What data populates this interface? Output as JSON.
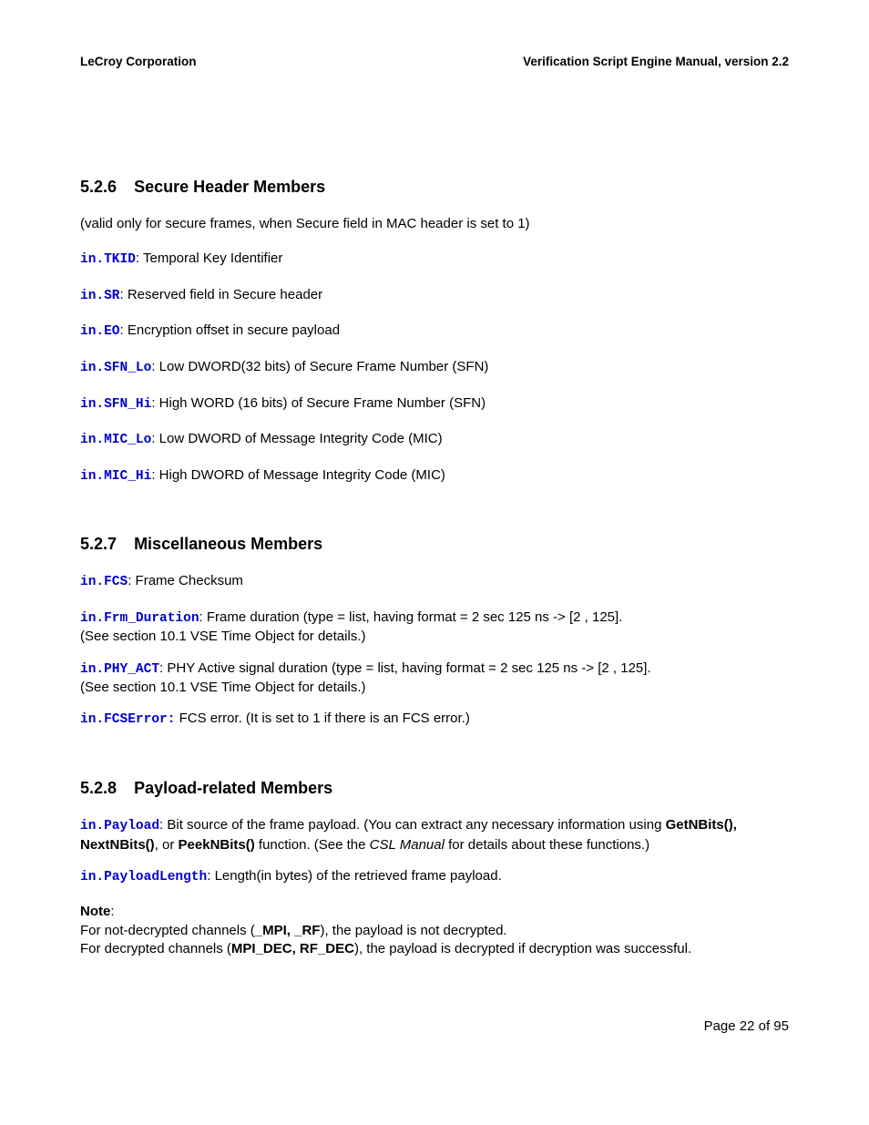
{
  "header": {
    "left": "LeCroy Corporation",
    "right": "Verification Script Engine Manual, version 2.2"
  },
  "sections": {
    "s1": {
      "num": "5.2.6",
      "title": "Secure Header Members"
    },
    "s2": {
      "num": "5.2.7",
      "title": "Miscellaneous Members"
    },
    "s3": {
      "num": "5.2.8",
      "title": "Payload-related Members"
    }
  },
  "s1": {
    "intro": "(valid only for secure frames, when Secure field in MAC header is set to 1)",
    "tkid_code": "in.TKID",
    "tkid_desc": ": Temporal Key Identifier",
    "sr_code": "in.SR",
    "sr_desc": ": Reserved field in Secure header",
    "eo_code": "in.EO",
    "eo_desc": ": Encryption offset in secure payload",
    "sfnlo_code": "in.SFN_Lo",
    "sfnlo_desc": ": Low DWORD(32 bits) of Secure Frame Number (SFN)",
    "sfnhi_code": "in.SFN_Hi",
    "sfnhi_desc": ": High WORD (16 bits) of Secure Frame Number (SFN)",
    "miclo_code": "in.MIC_Lo",
    "miclo_desc": ": Low DWORD of Message Integrity Code (MIC)",
    "michi_code": "in.MIC_Hi",
    "michi_desc": ": High DWORD of Message Integrity Code (MIC)"
  },
  "s2": {
    "fcs_code": "in.FCS",
    "fcs_desc": ": Frame Checksum",
    "frm_code": "in.Frm_Duration",
    "frm_desc1": ": Frame duration (type = list,  having format = 2 sec 125 ns -> [2 , 125].",
    "frm_desc2": "(See section 10.1 VSE Time Object for details.)",
    "phy_code": "in.PHY_ACT",
    "phy_desc1": ": PHY Active signal duration (type = list,  having format = 2 sec 125 ns -> [2 , 125].",
    "phy_desc2": "(See section 10.1 VSE Time Object for details.)",
    "fcserr_code": "in.FCSError:",
    "fcserr_desc": "  FCS error. (It is set to 1 if there is an FCS error.)"
  },
  "s3": {
    "payload_code": "in.Payload",
    "payload_desc1": ": Bit source of the frame payload. (You can extract any necessary information using ",
    "payload_bold1": "GetNBits(), NextNBits()",
    "payload_desc2": ", or ",
    "payload_bold2": "PeekNBits()",
    "payload_desc3": " function. (See the ",
    "payload_italic": "CSL Manual",
    "payload_desc4": " for details about these functions.)",
    "plen_code": "in.PayloadLength",
    "plen_desc": ": Length(in bytes) of the retrieved frame payload.",
    "note_label": "Note",
    "note_colon": ":",
    "note_line1a": "For not-decrypted channels (",
    "note_line1b": "_MPI, _RF",
    "note_line1c": "), the payload is not decrypted.",
    "note_line2a": "For decrypted channels (",
    "note_line2b": "MPI_DEC, RF_DEC",
    "note_line2c": "), the payload is decrypted if decryption was successful."
  },
  "footer": "Page 22 of 95"
}
